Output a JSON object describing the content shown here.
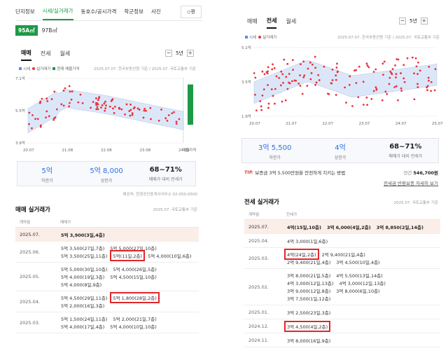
{
  "left": {
    "nav": [
      "단지정보",
      "시세/실거래가",
      "동호수/공시가격",
      "학군정보",
      "사진"
    ],
    "nav_active": 1,
    "pyeong_button": "평",
    "area": {
      "selected": "95A㎡",
      "other": "97B㎡"
    },
    "tabs": [
      "매매",
      "전세",
      "월세"
    ],
    "tabs_active": 0,
    "year": "5년",
    "legend": {
      "item1": "시세",
      "item2": "실거래가",
      "item3": "현재 매물가격",
      "source": "2025.07.07. 한국부동산원 기준 / 2025.07. 국토교통부 기준"
    },
    "stats": [
      {
        "value": "5억",
        "label": "하한가"
      },
      {
        "value": "5억 8,000",
        "label": "상한가"
      },
      {
        "value": "68~71%",
        "label": "매매가 대비 전세가"
      }
    ],
    "provider": "제공처: 한경공인중개사사무소 02-050-0500",
    "trade": {
      "title": "매매 실거래가",
      "sub": "2025.07. 국토교통부 기준",
      "headers": [
        "계약월",
        "매매가"
      ],
      "rows": [
        {
          "date": "2025.07.",
          "highlight": true,
          "lines": [
            [
              {
                "t": "5억 3,900(3일,4층)"
              }
            ]
          ]
        },
        {
          "date": "2025.06.",
          "lines": [
            [
              {
                "t": "5억 3,500(27일,7층)"
              },
              {
                "t": "5억 5,000(27일,10층)"
              }
            ],
            [
              {
                "t": "5억 3,500(25일,11층)"
              },
              {
                "t": "5억(11일,2층)",
                "boxed": true
              },
              {
                "t": "5억 4,000(10일,6층)"
              }
            ]
          ]
        },
        {
          "date": "2025.05.",
          "lines": [
            [
              {
                "t": "5억 5,000(30일,10층)"
              },
              {
                "t": "5억 4,000(26일,5층)"
              }
            ],
            [
              {
                "t": "5억 4,000(19일,3층)"
              },
              {
                "t": "5억 4,500(15일,10층)"
              }
            ],
            [
              {
                "t": "5억 4,000(8일,9층)"
              }
            ]
          ]
        },
        {
          "date": "2025.04.",
          "lines": [
            [
              {
                "t": "5억 4,500(29일,11층)"
              },
              {
                "t": "5억 1,800(28일,2층)",
                "boxed": true
              }
            ],
            [
              {
                "t": "5억 2,000(16일,3층)"
              }
            ]
          ]
        },
        {
          "date": "2025.03.",
          "lines": [
            [
              {
                "t": "5억 1,500(24일,11층)"
              },
              {
                "t": "5억 2,000(21일,7층)"
              }
            ],
            [
              {
                "t": "5억 4,000(17일,4층)"
              },
              {
                "t": "5억 4,000(10일,10층)"
              }
            ]
          ]
        }
      ]
    },
    "chart_data": {
      "type": "scatter",
      "x_ticks": [
        "20.07",
        "21.08",
        "22.08",
        "23.08",
        "24.09",
        "매물가격"
      ],
      "y_ticks": [
        "7.1억",
        "5.5억",
        "3.9억"
      ],
      "ylim": [
        3.9,
        7.1
      ],
      "listing_range": [
        4.8,
        6.8
      ]
    }
  },
  "right": {
    "tabs": [
      "매매",
      "전세",
      "월세"
    ],
    "tabs_active": 1,
    "year": "5년",
    "legend": {
      "item1": "시세",
      "item2": "실거래가",
      "source": "2025.07.07. 한국부동산원 기준 / 2025.07. 국토교통부 기준"
    },
    "stats": [
      {
        "value": "3억 5,500",
        "label": "하한가"
      },
      {
        "value": "4억",
        "label": "상한가"
      },
      {
        "value": "68~71%",
        "label": "매매가 대비 전세가"
      }
    ],
    "tip": {
      "label": "TIP.",
      "text": "보증금 3억 5,500만원을 안전하게 지키는 방법",
      "fee_label": "연간",
      "fee_value": "546,700원",
      "link": "전세금 반환보증 자세히 보기"
    },
    "lease": {
      "title": "전세 실거래가",
      "sub": "2025.07. 국토교통부 기준",
      "headers": [
        "계약월",
        "전세가"
      ],
      "rows": [
        {
          "date": "2025.07.",
          "highlight": true,
          "lines": [
            [
              {
                "t": "4억(15일,10층)"
              },
              {
                "t": "3억 6,000(4일,2층)"
              },
              {
                "t": "3억 8,850(2일,14층)"
              }
            ]
          ]
        },
        {
          "date": "2025.04.",
          "lines": [
            [
              {
                "t": "4억 3,000(1일,6층)"
              }
            ]
          ]
        },
        {
          "date": "2025.03.",
          "lines": [
            [
              {
                "t": "4억(24일,2층)",
                "boxed": true
              },
              {
                "t": "2억 9,400(21일,4층)"
              }
            ],
            [
              {
                "t": "2억 9,400(21일,4층)"
              },
              {
                "t": "3억 4,500(10일,4층)"
              }
            ]
          ]
        },
        {
          "date": "2025.02.",
          "lines": [
            [
              {
                "t": "3억 8,000(21일,5층)"
              },
              {
                "t": "4억 5,500(13일,14층)"
              }
            ],
            [
              {
                "t": "4억 3,000(12일,13층)"
              },
              {
                "t": "4억 3,000(12일,13층)"
              }
            ],
            [
              {
                "t": "3억 9,000(12일,8층)"
              },
              {
                "t": "3억 8,000(6일,10층)"
              }
            ],
            [
              {
                "t": "3억 7,500(1일,12층)"
              }
            ]
          ]
        },
        {
          "date": "2025.01.",
          "lines": [
            [
              {
                "t": "3억 2,500(23일,3층)"
              }
            ]
          ]
        },
        {
          "date": "2024.12.",
          "lines": [
            [
              {
                "t": "3억 4,500(4일,2층)",
                "boxed": true
              }
            ]
          ]
        },
        {
          "date": "2024.11.",
          "lines": [
            [
              {
                "t": "3억 8,000(16일,9층)"
              }
            ]
          ]
        }
      ]
    },
    "chart_data": {
      "type": "scatter",
      "x_ticks": [
        "20.07",
        "21.07",
        "22.07",
        "23.07",
        "24.07",
        "25.07"
      ],
      "y_ticks": [
        "5.1억",
        "3.5억",
        "1.9억"
      ],
      "ylim": [
        1.9,
        5.1
      ]
    }
  },
  "colors": {
    "accent_green": "#1d9a46",
    "trade_dot": "#e8333c",
    "band": "#dbe7f8",
    "band_line": "#b7cbe8",
    "blue_value": "#2f6fe0",
    "highlight_row": "#fbeee9",
    "box_red": "#e2262b"
  }
}
